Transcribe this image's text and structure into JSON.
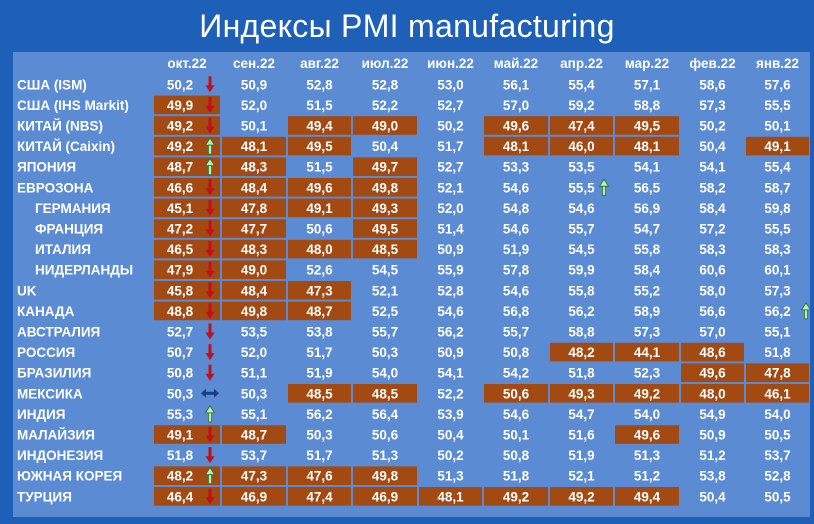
{
  "title": "Индексы PMI manufacturing",
  "colors": {
    "background": "#1e5fb8",
    "table_bg": "#5b8bd2",
    "highlight": "#a34a12",
    "text": "#ffffff",
    "arrow_down": "#c0101a",
    "arrow_up": "#b8f0b0",
    "arrow_both": "#1a3c8a"
  },
  "chart_data": {
    "type": "table",
    "columns": [
      "окт.22",
      "сен.22",
      "авг.22",
      "июл.22",
      "июн.22",
      "май.22",
      "апр.22",
      "мар.22",
      "фев.22",
      "янв.22"
    ],
    "rows": [
      {
        "label": "США (ISM)",
        "indent": false,
        "values": [
          "50,2",
          "50,9",
          "52,8",
          "52,8",
          "53,0",
          "56,1",
          "55,4",
          "57,1",
          "58,6",
          "57,6"
        ],
        "below50": [
          false,
          false,
          false,
          false,
          false,
          false,
          false,
          false,
          false,
          false
        ],
        "trend": "down"
      },
      {
        "label": "США (IHS Markit)",
        "indent": false,
        "values": [
          "49,9",
          "52,0",
          "51,5",
          "52,2",
          "52,7",
          "57,0",
          "59,2",
          "58,8",
          "57,3",
          "55,5"
        ],
        "below50": [
          true,
          false,
          false,
          false,
          false,
          false,
          false,
          false,
          false,
          false
        ],
        "trend": "down"
      },
      {
        "label": "КИТАЙ (NBS)",
        "indent": false,
        "values": [
          "49,2",
          "50,1",
          "49,4",
          "49,0",
          "50,2",
          "49,6",
          "47,4",
          "49,5",
          "50,2",
          "50,1"
        ],
        "below50": [
          true,
          false,
          true,
          true,
          false,
          true,
          true,
          true,
          false,
          false
        ],
        "trend": "down"
      },
      {
        "label": "КИТАЙ (Caixin)",
        "indent": false,
        "values": [
          "49,2",
          "48,1",
          "49,5",
          "50,4",
          "51,7",
          "48,1",
          "46,0",
          "48,1",
          "50,4",
          "49,1"
        ],
        "below50": [
          true,
          true,
          true,
          false,
          false,
          true,
          true,
          true,
          false,
          true
        ],
        "trend": "up"
      },
      {
        "label": "ЯПОНИЯ",
        "indent": false,
        "values": [
          "48,7",
          "48,3",
          "51,5",
          "49,7",
          "52,7",
          "53,3",
          "53,5",
          "54,1",
          "54,1",
          "55,4"
        ],
        "below50": [
          true,
          true,
          false,
          true,
          false,
          false,
          false,
          false,
          false,
          false
        ],
        "trend": "up"
      },
      {
        "label": "ЕВРОЗОНА",
        "indent": false,
        "values": [
          "46,6",
          "48,4",
          "49,6",
          "49,8",
          "52,1",
          "54,6",
          "55,5",
          "56,5",
          "58,2",
          "58,7"
        ],
        "below50": [
          true,
          true,
          true,
          true,
          false,
          false,
          false,
          false,
          false,
          false
        ],
        "trend": "down",
        "extra_arrow_col": 6
      },
      {
        "label": "ГЕРМАНИЯ",
        "indent": true,
        "values": [
          "45,1",
          "47,8",
          "49,1",
          "49,3",
          "52,0",
          "54,8",
          "54,6",
          "56,9",
          "58,4",
          "59,8"
        ],
        "below50": [
          true,
          true,
          true,
          true,
          false,
          false,
          false,
          false,
          false,
          false
        ],
        "trend": "down"
      },
      {
        "label": "ФРАНЦИЯ",
        "indent": true,
        "values": [
          "47,2",
          "47,7",
          "50,6",
          "49,5",
          "51,4",
          "54,6",
          "55,7",
          "54,7",
          "57,2",
          "55,5"
        ],
        "below50": [
          true,
          true,
          false,
          true,
          false,
          false,
          false,
          false,
          false,
          false
        ],
        "trend": "down"
      },
      {
        "label": "ИТАЛИЯ",
        "indent": true,
        "values": [
          "46,5",
          "48,3",
          "48,0",
          "48,5",
          "50,9",
          "51,9",
          "54,5",
          "55,8",
          "58,3",
          "58,3"
        ],
        "below50": [
          true,
          true,
          true,
          true,
          false,
          false,
          false,
          false,
          false,
          false
        ],
        "trend": "down"
      },
      {
        "label": "НИДЕРЛАНДЫ",
        "indent": true,
        "values": [
          "47,9",
          "49,0",
          "52,6",
          "54,5",
          "55,9",
          "57,8",
          "59,9",
          "58,4",
          "60,6",
          "60,1"
        ],
        "below50": [
          true,
          true,
          false,
          false,
          false,
          false,
          false,
          false,
          false,
          false
        ],
        "trend": "down"
      },
      {
        "label": "UK",
        "indent": false,
        "values": [
          "45,8",
          "48,4",
          "47,3",
          "52,1",
          "52,8",
          "54,6",
          "55,8",
          "55,2",
          "58,0",
          "57,3"
        ],
        "below50": [
          true,
          true,
          true,
          false,
          false,
          false,
          false,
          false,
          false,
          false
        ],
        "trend": "down"
      },
      {
        "label": "КАНАДА",
        "indent": false,
        "values": [
          "48,8",
          "49,8",
          "48,7",
          "52,5",
          "54,6",
          "56,8",
          "56,2",
          "58,9",
          "56,6",
          "56,2"
        ],
        "below50": [
          true,
          true,
          true,
          false,
          false,
          false,
          false,
          false,
          false,
          false
        ],
        "trend": "down",
        "extra_arrow_col": 10
      },
      {
        "label": "АВСТРАЛИЯ",
        "indent": false,
        "values": [
          "52,7",
          "53,5",
          "53,8",
          "55,7",
          "56,2",
          "55,7",
          "58,8",
          "57,3",
          "57,0",
          "55,1"
        ],
        "below50": [
          false,
          false,
          false,
          false,
          false,
          false,
          false,
          false,
          false,
          false
        ],
        "trend": "down"
      },
      {
        "label": "РОССИЯ",
        "indent": false,
        "values": [
          "50,7",
          "52,0",
          "51,7",
          "50,3",
          "50,9",
          "50,8",
          "48,2",
          "44,1",
          "48,6",
          "51,8"
        ],
        "below50": [
          false,
          false,
          false,
          false,
          false,
          false,
          true,
          true,
          true,
          false
        ],
        "trend": "down"
      },
      {
        "label": "БРАЗИЛИЯ",
        "indent": false,
        "values": [
          "50,8",
          "51,1",
          "51,9",
          "54,0",
          "54,1",
          "54,2",
          "51,8",
          "52,3",
          "49,6",
          "47,8"
        ],
        "below50": [
          false,
          false,
          false,
          false,
          false,
          false,
          false,
          false,
          true,
          true
        ],
        "trend": "down"
      },
      {
        "label": "МЕКСИКА",
        "indent": false,
        "values": [
          "50,3",
          "50,3",
          "48,5",
          "48,5",
          "52,2",
          "50,6",
          "49,3",
          "49,2",
          "48,0",
          "46,1"
        ],
        "below50": [
          false,
          false,
          true,
          true,
          false,
          true,
          true,
          true,
          true,
          true
        ],
        "trend": "both"
      },
      {
        "label": "ИНДИЯ",
        "indent": false,
        "values": [
          "55,3",
          "55,1",
          "56,2",
          "56,4",
          "53,9",
          "54,6",
          "54,7",
          "54,0",
          "54,9",
          "54,0"
        ],
        "below50": [
          false,
          false,
          false,
          false,
          false,
          false,
          false,
          false,
          false,
          false
        ],
        "trend": "up"
      },
      {
        "label": "МАЛАЙЗИЯ",
        "indent": false,
        "values": [
          "49,1",
          "48,7",
          "50,3",
          "50,6",
          "50,4",
          "50,1",
          "51,6",
          "49,6",
          "50,9",
          "50,5"
        ],
        "below50": [
          true,
          true,
          false,
          false,
          false,
          false,
          false,
          true,
          false,
          false
        ],
        "trend": "down"
      },
      {
        "label": "ИНДОНЕЗИЯ",
        "indent": false,
        "values": [
          "51,8",
          "53,7",
          "51,7",
          "51,3",
          "50,2",
          "50,8",
          "51,9",
          "51,3",
          "51,2",
          "53,7"
        ],
        "below50": [
          false,
          false,
          false,
          false,
          false,
          false,
          false,
          false,
          false,
          false
        ],
        "trend": "down"
      },
      {
        "label": "ЮЖНАЯ КОРЕЯ",
        "indent": false,
        "values": [
          "48,2",
          "47,3",
          "47,6",
          "49,8",
          "51,3",
          "51,8",
          "52,1",
          "51,2",
          "53,8",
          "52,8"
        ],
        "below50": [
          true,
          true,
          true,
          true,
          false,
          false,
          false,
          false,
          false,
          false
        ],
        "trend": "up"
      },
      {
        "label": "ТУРЦИЯ",
        "indent": false,
        "values": [
          "46,4",
          "46,9",
          "47,4",
          "46,9",
          "48,1",
          "49,2",
          "49,2",
          "49,4",
          "50,4",
          "50,5"
        ],
        "below50": [
          true,
          true,
          true,
          true,
          true,
          true,
          true,
          true,
          false,
          false
        ],
        "trend": "down"
      }
    ]
  }
}
